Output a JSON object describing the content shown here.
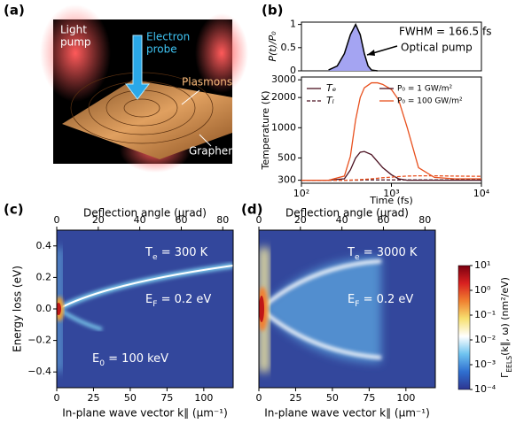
{
  "panel_labels": [
    "(a)",
    "(b)",
    "(c)",
    "(d)"
  ],
  "illustration": {
    "labels": [
      {
        "lines": [
          "Light",
          "pump"
        ],
        "color": "#ffffff"
      },
      {
        "lines": [
          "Electron",
          "probe"
        ],
        "color": "#3fc4f4"
      },
      {
        "lines": [
          "Plasmons"
        ],
        "color": "#f5b87a"
      },
      {
        "lines": [
          "Graphene"
        ],
        "color": "#ffffff"
      }
    ]
  },
  "chart_data": [
    {
      "type": "area",
      "ylabel": "P(t)/P₀",
      "x": [
        200,
        250,
        300,
        350,
        400,
        450,
        500,
        550,
        600,
        700
      ],
      "values": [
        0.018,
        0.105,
        0.37,
        0.78,
        1,
        0.78,
        0.37,
        0.105,
        0.018,
        0
      ],
      "color": "#a4a4f2",
      "xlim": [
        100,
        10000
      ],
      "xscale": "log",
      "ylim": [
        0,
        1.05
      ],
      "yticks": [
        0,
        0.5,
        1
      ],
      "annotations": [
        "FWHM = 166.5 fs",
        "Optical pump"
      ]
    },
    {
      "type": "line",
      "xlabel": "Time (fs)",
      "ylabel": "Temperature (K)",
      "x": [
        100,
        200,
        300,
        350,
        400,
        450,
        500,
        600,
        700,
        800,
        1000,
        1200,
        1500,
        2000,
        3000,
        5000,
        10000
      ],
      "series": [
        {
          "color": "#4a1020",
          "dash": false,
          "values": [
            300,
            300,
            310,
            380,
            500,
            570,
            580,
            540,
            460,
            400,
            340,
            310,
            300,
            300,
            300,
            300,
            300
          ]
        },
        {
          "color": "#4a1020",
          "dash": true,
          "values": [
            300,
            300,
            300,
            300,
            301,
            301,
            302,
            302,
            302,
            302,
            302,
            302,
            302,
            302,
            302,
            302,
            302
          ]
        },
        {
          "color": "#e8501e",
          "dash": false,
          "values": [
            300,
            300,
            330,
            520,
            1200,
            2000,
            2500,
            2800,
            2800,
            2700,
            2400,
            1900,
            1000,
            400,
            320,
            310,
            310
          ]
        },
        {
          "color": "#e8501e",
          "dash": true,
          "values": [
            300,
            300,
            300,
            301,
            302,
            304,
            306,
            310,
            314,
            318,
            322,
            326,
            330,
            332,
            332,
            330,
            328
          ]
        }
      ],
      "xlim": [
        100,
        10000
      ],
      "xscale": "log",
      "xticks": [
        {
          "value": 100,
          "label": "10²"
        },
        {
          "value": 1000,
          "label": "10³"
        },
        {
          "value": 10000,
          "label": "10⁴"
        }
      ],
      "ylim": [
        280,
        3200
      ],
      "yscale": "log",
      "yticks": [
        300,
        500,
        1000,
        2000,
        3000
      ],
      "legend": {
        "styles": [
          {
            "label": "Tₑ",
            "dash": false,
            "color": "#4a1020"
          },
          {
            "label": "Tₗ",
            "dash": true,
            "color": "#4a1020"
          }
        ],
        "colors": [
          {
            "label": "P₀ = 1 GW/m²",
            "color": "#4a1020"
          },
          {
            "label": "P₀ = 100 GW/m²",
            "color": "#e8501e"
          }
        ]
      }
    },
    {
      "type": "heatmap",
      "xlabel": "In-plane wave vector k∥ (μm⁻¹)",
      "x2label": "Deflection angle (μrad)",
      "ylabel": "Energy loss (eV)",
      "xlim": [
        0,
        120
      ],
      "xticks": [
        0,
        25,
        50,
        75,
        100
      ],
      "x2lim": [
        0,
        85
      ],
      "x2ticks": [
        0,
        20,
        40,
        60,
        80
      ],
      "ylim": [
        -0.5,
        0.5
      ],
      "yticks": [
        {
          "value": -0.4,
          "label": "−0.4"
        },
        {
          "value": -0.2,
          "label": "−0.2"
        },
        {
          "value": 0,
          "label": "0.0"
        },
        0.2,
        0.4
      ],
      "annotations": [
        {
          "main": "T",
          "sub": "e",
          "rest": " = 300 K"
        },
        {
          "main": "E",
          "sub": "F",
          "rest": " = 0.2 eV"
        },
        {
          "main": "E",
          "sub": "0",
          "rest": " = 100 keV"
        }
      ]
    },
    {
      "type": "heatmap",
      "xlabel": "In-plane wave vector k∥ (μm⁻¹)",
      "x2label": "Deflection angle (μrad)",
      "xlim": [
        0,
        120
      ],
      "xticks": [
        0,
        25,
        50,
        75,
        100
      ],
      "x2lim": [
        0,
        85
      ],
      "x2ticks": [
        0,
        20,
        40,
        60,
        80
      ],
      "ylim": [
        -0.5,
        0.5
      ],
      "annotations": [
        {
          "main": "T",
          "sub": "e",
          "rest": " = 3000 K"
        },
        {
          "main": "E",
          "sub": "F",
          "rest": " = 0.2 eV"
        }
      ]
    },
    {
      "type": "colorbar",
      "label": {
        "main": "Γ",
        "sub": "EELS",
        "rest": "(k∥, ω) (nm²/eV)"
      },
      "scale": "log",
      "lim": [
        0.0001,
        10
      ],
      "ticks": [
        {
          "value": 0.0001,
          "label": "10⁻⁴"
        },
        {
          "value": 0.001,
          "label": "10⁻³"
        },
        {
          "value": 0.01,
          "label": "10⁻²"
        },
        {
          "value": 0.1,
          "label": "10⁻¹"
        },
        {
          "value": 1,
          "label": "10⁰"
        },
        {
          "value": 10,
          "label": "10¹"
        }
      ],
      "colors": [
        "#2d3590",
        "#2f6fd0",
        "#6ec3f0",
        "#ffffff",
        "#f7e070",
        "#f08030",
        "#d82020",
        "#7a0010"
      ]
    }
  ]
}
